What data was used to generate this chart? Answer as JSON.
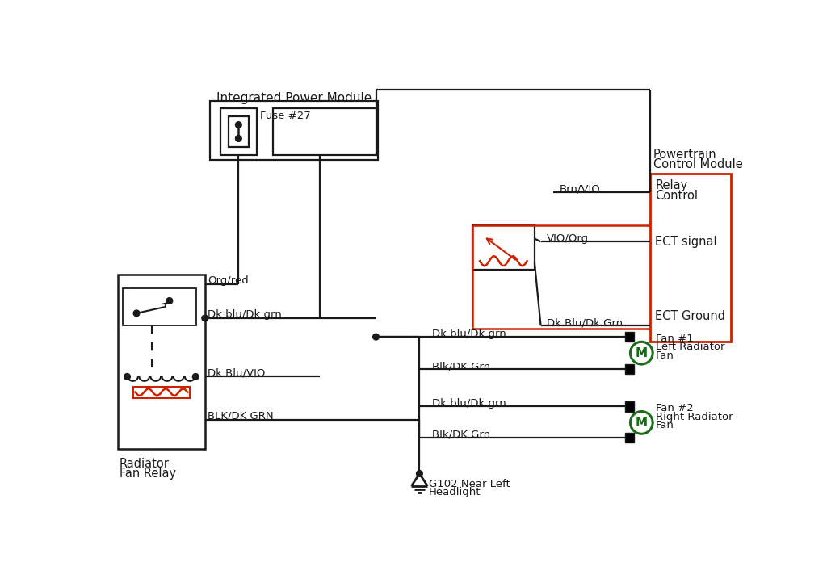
{
  "bg_color": "#ffffff",
  "line_color": "#1a1a1a",
  "red_color": "#cc2200",
  "green_color": "#1a6b1a",
  "ipm_label": "Integrated Power Module",
  "fuse_label": "Fuse #27",
  "pcm_label_1": "Powertrain",
  "pcm_label_2": "Control Module",
  "relay_label_1": "Relay",
  "relay_label_2": "Control",
  "ect_signal_label": "ECT signal",
  "ect_ground_label": "ECT Ground",
  "relay_fan_label_1": "Radiator",
  "relay_fan_label_2": "Fan Relay",
  "fan1_label_1": "Fan #1",
  "fan1_label_2": "Left Radiator",
  "fan1_label_3": "Fan",
  "fan2_label_1": "Fan #2",
  "fan2_label_2": "Right Radiator",
  "fan2_label_3": "Fan",
  "ground_label_1": "G102 Near Left",
  "ground_label_2": "Headlight",
  "wire_brn_vio": "Brn/VIO",
  "wire_vio_org": "VIO/Org",
  "wire_dk_blu_dk_grn_ect": "Dk Blu/Dk Grn",
  "wire_org_red": "Org/red",
  "wire_dk_blu_dk_grn": "Dk blu/Dk grn",
  "wire_dk_blu_vio": "Dk Blu/VIO",
  "wire_blk_dk_grn": "BLK/DK GRN",
  "wire_blk_dk_grn_fan": "Blk/DK Grn"
}
